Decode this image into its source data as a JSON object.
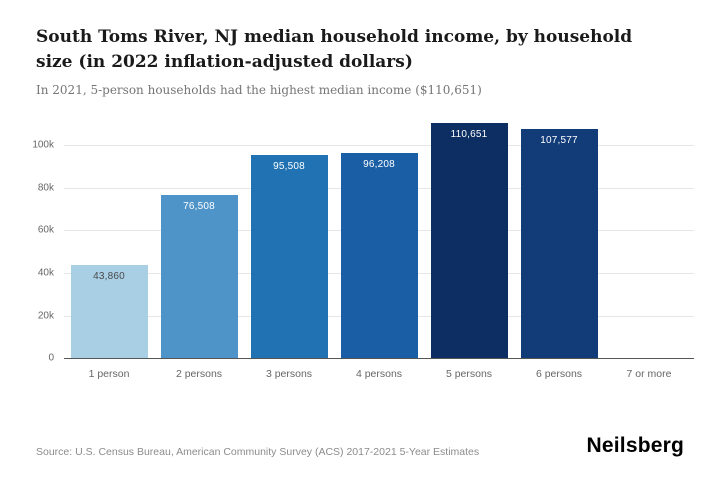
{
  "header": {
    "title": "South Toms River, NJ median household income, by household size (in 2022 inflation-adjusted dollars)",
    "subtitle": "In 2021, 5-person households had the highest median income ($110,651)"
  },
  "chart_data": {
    "type": "bar",
    "title": "South Toms River, NJ median household income, by household size (in 2022 inflation-adjusted dollars)",
    "subtitle": "In 2021, 5-person households had the highest median income ($110,651)",
    "categories": [
      "1 person",
      "2 persons",
      "3 persons",
      "4 persons",
      "5 persons",
      "6 persons",
      "7 or more"
    ],
    "values": [
      43860,
      76508,
      95508,
      96208,
      110651,
      107577,
      0
    ],
    "value_labels": [
      "43,860",
      "76,508",
      "95,508",
      "96,208",
      "110,651",
      "107,577",
      ""
    ],
    "bar_colors": [
      "#a9cfe5",
      "#4f94c9",
      "#2072b2",
      "#1a5fa6",
      "#0d2e62",
      "#123c78",
      "#ffffff"
    ],
    "label_colors": [
      "#4a4a4a",
      "#ffffff",
      "#ffffff",
      "#ffffff",
      "#ffffff",
      "#ffffff",
      "#4a4a4a"
    ],
    "xlabel": "",
    "ylabel": "",
    "ylim": [
      0,
      115000
    ],
    "yticks": [
      0,
      20000,
      40000,
      60000,
      80000,
      100000
    ],
    "ytick_labels": [
      "0",
      "20k",
      "40k",
      "60k",
      "80k",
      "100k"
    ],
    "grid": true,
    "legend": false
  },
  "footer": {
    "source": "Source: U.S. Census Bureau, American Community Survey (ACS) 2017-2021 5-Year Estimates",
    "brand": "Neilsberg"
  }
}
